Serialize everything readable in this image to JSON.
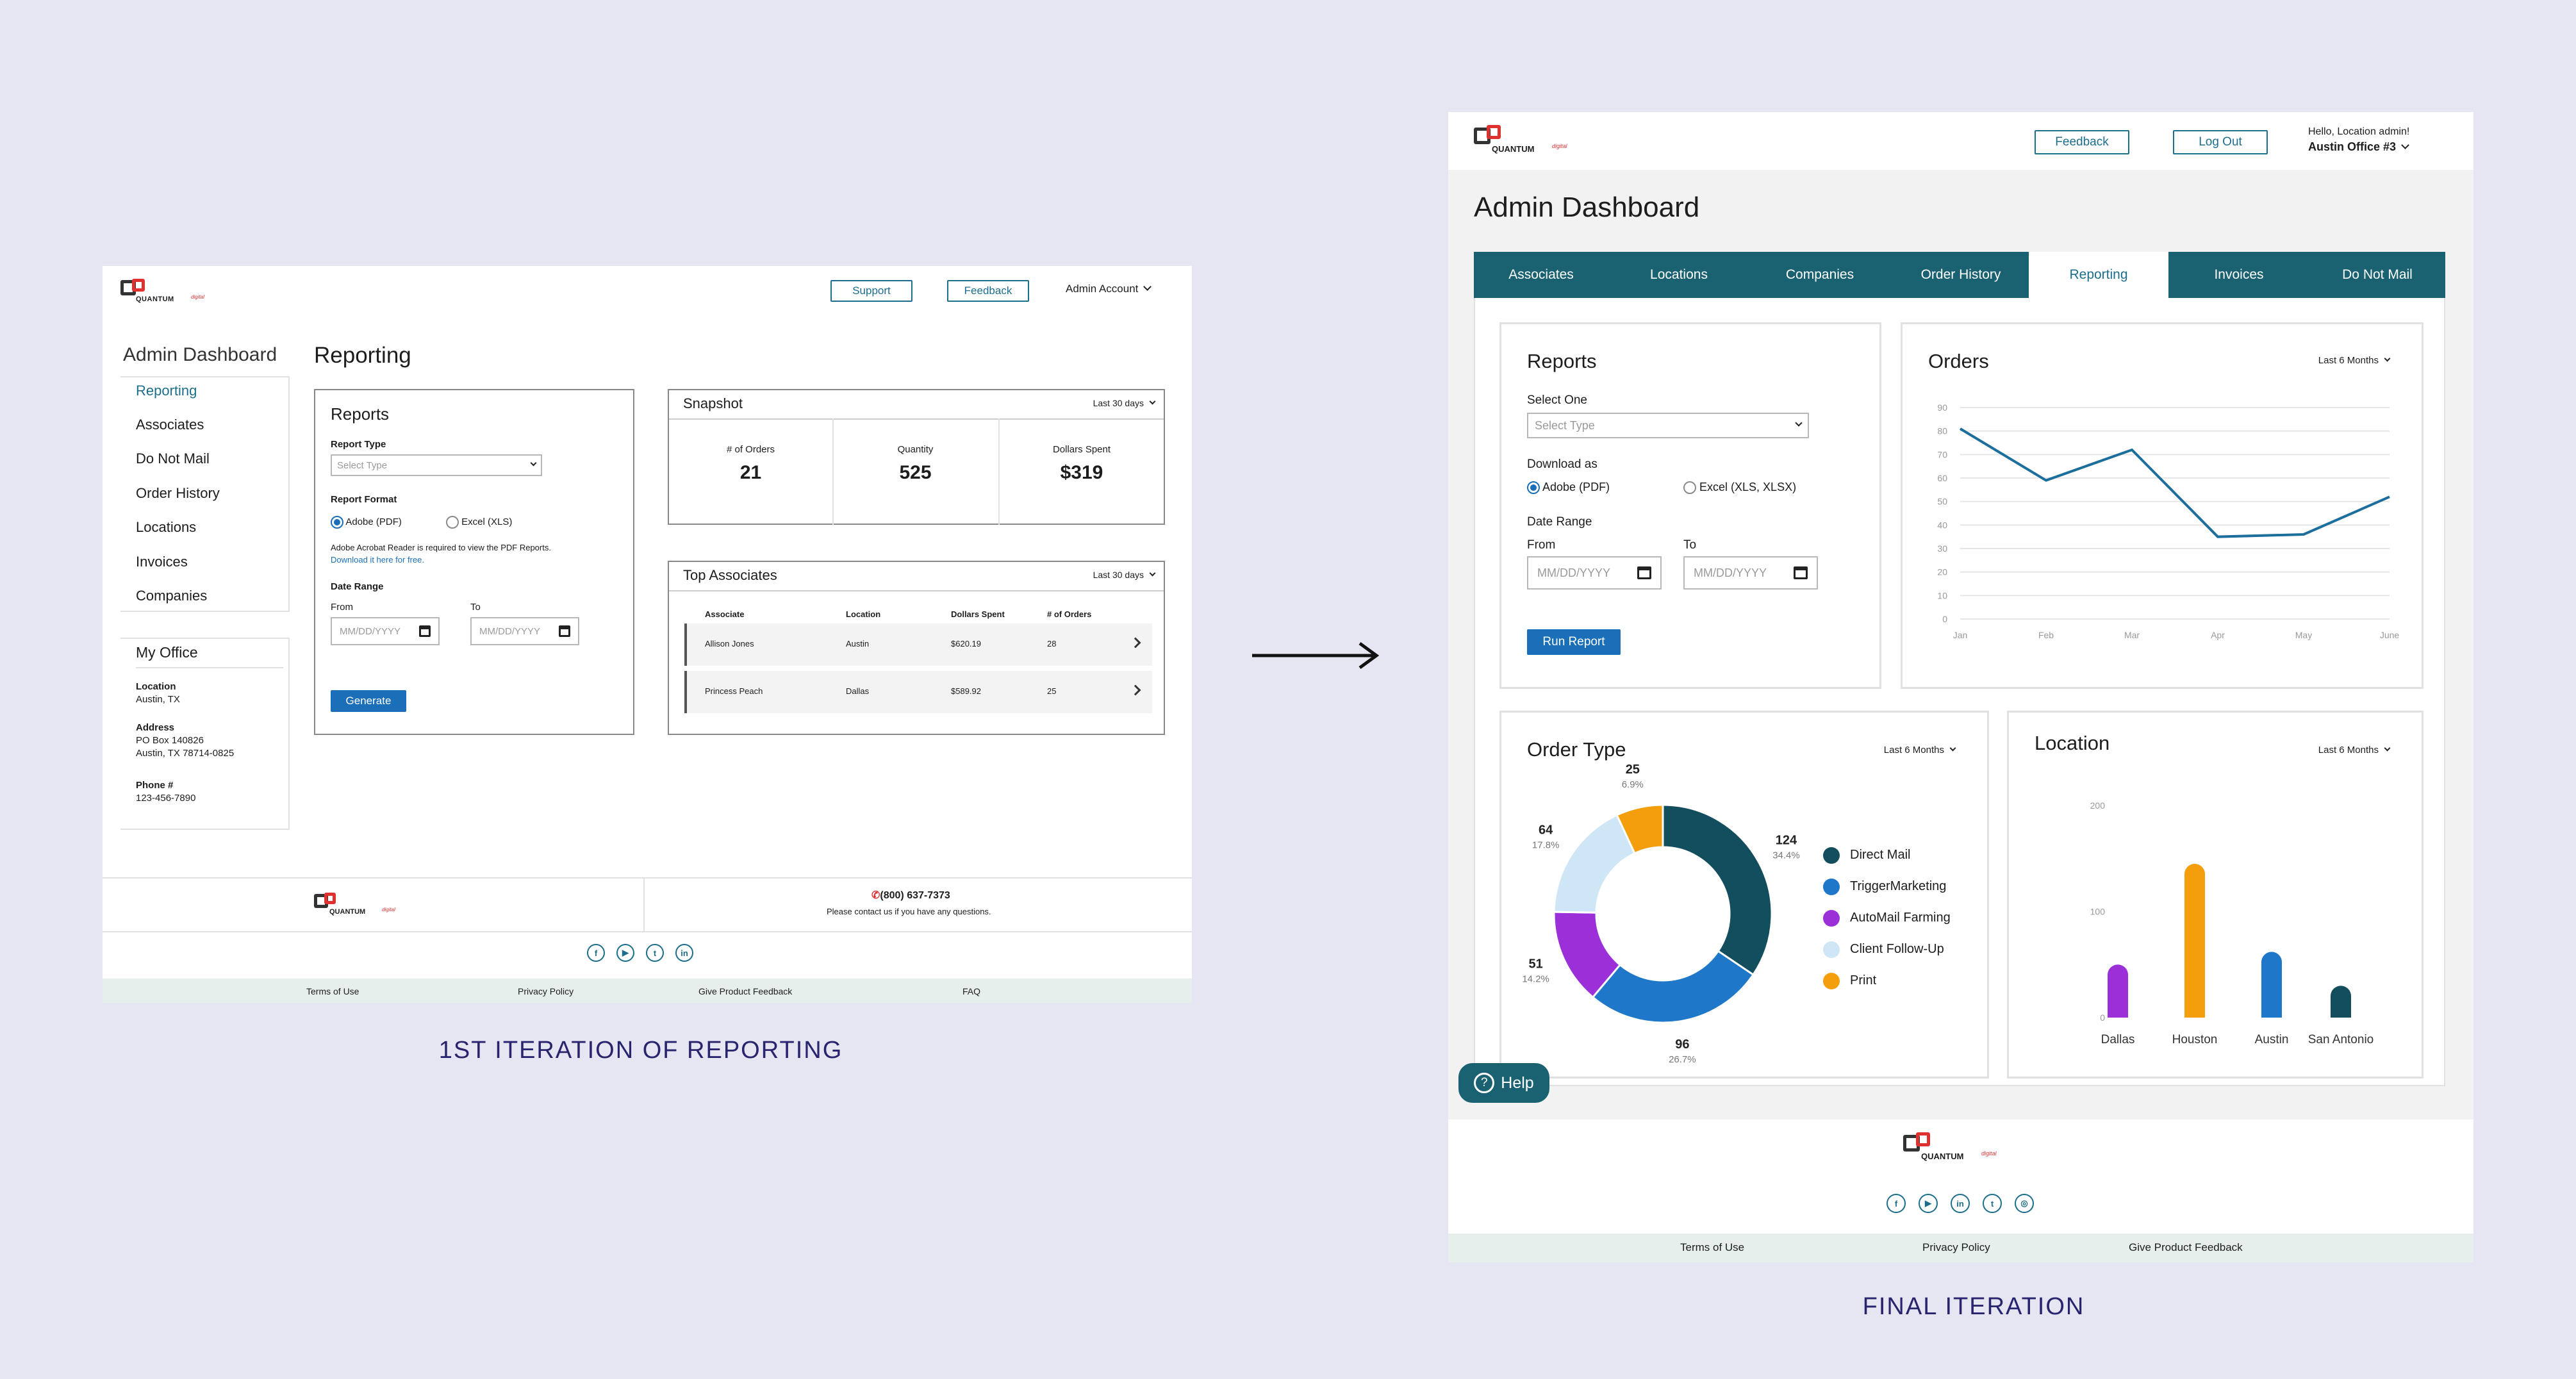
{
  "left": {
    "caption": "1ST ITERATION OF REPORTING",
    "header": {
      "logo": "QUANTUM",
      "logo_sup": "digital",
      "support": "Support",
      "feedback": "Feedback",
      "account": "Admin Account"
    },
    "sidebar": {
      "title": "Admin Dashboard",
      "items": [
        "Reporting",
        "Associates",
        "Do Not Mail",
        "Order History",
        "Locations",
        "Invoices",
        "Companies"
      ],
      "office_title": "My Office",
      "location_label": "Location",
      "location": "Austin, TX",
      "address_label": "Address",
      "address1": "PO Box 140826",
      "address2": "Austin, TX 78714-0825",
      "phone_label": "Phone #",
      "phone": "123-456-7890"
    },
    "main_title": "Reporting",
    "reports": {
      "title": "Reports",
      "type_label": "Report Type",
      "type_placeholder": "Select Type",
      "format_label": "Report Format",
      "opt_pdf": "Adobe (PDF)",
      "opt_xls": "Excel (XLS)",
      "note": "Adobe Acrobat Reader is required to view the PDF Reports.",
      "note_link": "Download it here for free.",
      "range_label": "Date Range",
      "from": "From",
      "to": "To",
      "date_ph": "MM/DD/YYYY",
      "generate": "Generate"
    },
    "snapshot": {
      "title": "Snapshot",
      "period": "Last 30 days",
      "stats": [
        {
          "label": "# of Orders",
          "value": "21"
        },
        {
          "label": "Quantity",
          "value": "525"
        },
        {
          "label": "Dollars Spent",
          "value": "$319"
        }
      ]
    },
    "top": {
      "title": "Top Associates",
      "period": "Last 30 days",
      "headers": [
        "Associate",
        "Location",
        "Dollars Spent",
        "# of Orders"
      ],
      "rows": [
        [
          "Allison Jones",
          "Austin",
          "$620.19",
          "28"
        ],
        [
          "Princess Peach",
          "Dallas",
          "$589.92",
          "25"
        ]
      ]
    },
    "footer": {
      "phone": "(800) 637-7373",
      "contact": "Please contact us if you have any questions.",
      "links": [
        "Terms of Use",
        "Privacy Policy",
        "Give Product Feedback",
        "FAQ"
      ]
    }
  },
  "right": {
    "caption": "FINAL ITERATION",
    "header": {
      "logo": "QUANTUM",
      "logo_sup": "digital",
      "feedback": "Feedback",
      "logout": "Log Out",
      "hello": "Hello, Location admin!",
      "office": "Austin Office #3"
    },
    "title": "Admin Dashboard",
    "tabs": [
      "Associates",
      "Locations",
      "Companies",
      "Order History",
      "Reporting",
      "Invoices",
      "Do Not Mail"
    ],
    "reports": {
      "title": "Reports",
      "select_label": "Select One",
      "select_ph": "Select Type",
      "download_label": "Download as",
      "opt_pdf": "Adobe (PDF)",
      "opt_xls": "Excel (XLS, XLSX)",
      "range_label": "Date Range",
      "from": "From",
      "to": "To",
      "date_ph": "MM/DD/YYYY",
      "run": "Run Report"
    },
    "orders": {
      "title": "Orders",
      "period": "Last 6 Months"
    },
    "order_type": {
      "title": "Order Type",
      "period": "Last 6 Months"
    },
    "location": {
      "title": "Location",
      "period": "Last 6 Months"
    },
    "help": "Help",
    "footer": {
      "links": [
        "Terms of Use",
        "Privacy Policy",
        "Give Product Feedback"
      ]
    }
  },
  "chart_data": [
    {
      "type": "line",
      "x": [
        "Jan",
        "Feb",
        "Mar",
        "Apr",
        "May",
        "June"
      ],
      "series": [
        {
          "values": [
            81,
            59,
            72,
            35,
            36,
            52
          ]
        }
      ],
      "ylim": [
        0,
        90
      ],
      "yticks": [
        0,
        10,
        20,
        30,
        40,
        50,
        60,
        70,
        80,
        90
      ],
      "color": "#1c6e9c"
    },
    {
      "type": "pie",
      "donut": true,
      "labels": [
        "Direct Mail",
        "TriggerMarketing",
        "AutoMail Farming",
        "Client Follow-Up",
        "Print"
      ],
      "values": [
        124,
        96,
        51,
        64,
        25
      ],
      "percent_labels": [
        "34.4%",
        "26.7%",
        "14.2%",
        "17.8%",
        "6.9%"
      ],
      "colors": [
        "#134e5e",
        "#1f77c9",
        "#9b30d9",
        "#cfe6f7",
        "#f59e0b"
      ]
    },
    {
      "type": "bar",
      "categories": [
        "Dallas",
        "Houston",
        "Austin",
        "San Antonio"
      ],
      "values": [
        50,
        145,
        62,
        30
      ],
      "ylim": [
        0,
        200
      ],
      "yticks": [
        0,
        100,
        200
      ],
      "colors": [
        "#9b30d9",
        "#f59e0b",
        "#1f77c9",
        "#134e5e"
      ]
    }
  ]
}
